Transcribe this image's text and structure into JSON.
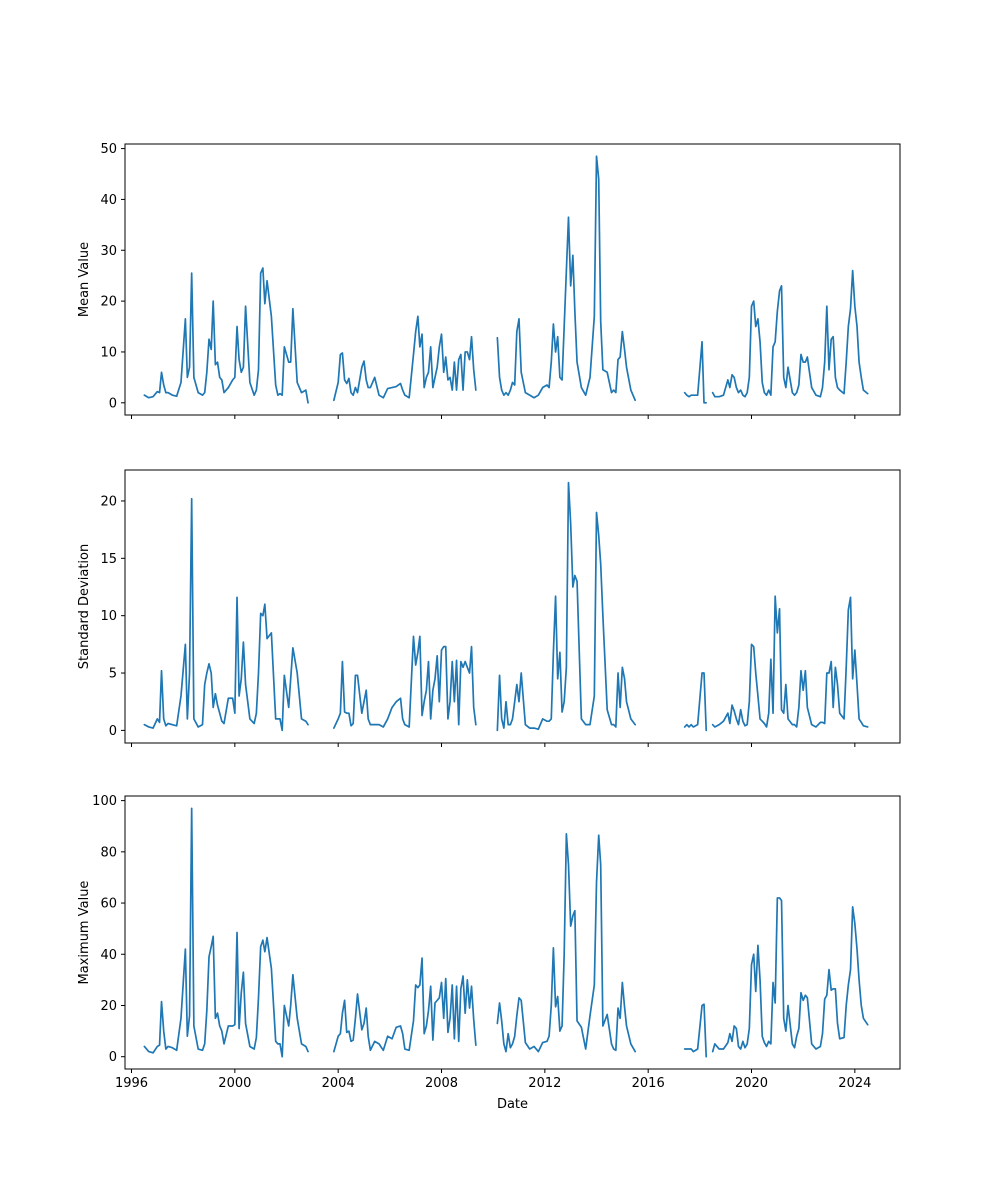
{
  "chart_data": {
    "type": "line",
    "xlabel": "Date",
    "x_ticks": [
      "1996",
      "2000",
      "2004",
      "2008",
      "2012",
      "2016",
      "2020",
      "2024"
    ],
    "xlim": [
      "1995-10-01",
      "2025-10-01"
    ],
    "sharex": true,
    "grid": false,
    "color": "#1f77b4",
    "segments": [
      {
        "x": [
          "1996-07",
          "1996-09",
          "1996-11",
          "1997-01",
          "1997-02",
          "1997-03",
          "1997-04",
          "1997-05",
          "1997-06",
          "1997-08",
          "1997-10",
          "1997-12",
          "1998-02",
          "1998-03",
          "1998-04",
          "1998-05",
          "1998-06",
          "1998-08",
          "1998-10",
          "1998-11",
          "1998-12",
          "1999-01",
          "1999-02",
          "1999-03",
          "1999-04",
          "1999-05",
          "1999-06",
          "1999-07",
          "1999-08",
          "1999-10",
          "1999-12",
          "2000-01",
          "2000-02",
          "2000-03",
          "2000-04",
          "2000-05",
          "2000-06",
          "2000-08",
          "2000-10",
          "2000-11",
          "2000-12",
          "2001-01",
          "2001-02",
          "2001-03",
          "2001-04",
          "2001-06",
          "2001-08",
          "2001-09",
          "2001-10",
          "2001-11",
          "2001-12",
          "2002-02",
          "2002-03",
          "2002-04",
          "2002-06",
          "2002-08",
          "2002-10",
          "2002-11"
        ],
        "mean": [
          1.5,
          1.0,
          1.2,
          2.2,
          2.0,
          6.0,
          3.5,
          2.0,
          2.0,
          1.5,
          1.3,
          4.0,
          16.5,
          5.0,
          7.0,
          25.5,
          5.0,
          2.0,
          1.5,
          2.0,
          6.0,
          12.5,
          10.5,
          20.0,
          7.5,
          8.0,
          5.0,
          4.5,
          2.0,
          3.0,
          4.5,
          5.0,
          15.0,
          8.5,
          6.0,
          7.0,
          19.0,
          4.0,
          1.5,
          2.5,
          6.5,
          25.5,
          26.5,
          19.5,
          24.0,
          17.0,
          3.5,
          1.5,
          1.8,
          1.5,
          11.0,
          8.0,
          8.0,
          18.5,
          4.0,
          2.0,
          2.5,
          0.0
        ],
        "std": [
          0.5,
          0.3,
          0.2,
          1.0,
          0.7,
          5.2,
          1.0,
          0.4,
          0.6,
          0.5,
          0.4,
          3.0,
          7.5,
          1.0,
          5.0,
          20.2,
          1.0,
          0.3,
          0.5,
          4.0,
          5.0,
          5.8,
          5.0,
          2.0,
          3.2,
          2.2,
          1.5,
          0.8,
          0.6,
          2.8,
          2.8,
          1.5,
          11.6,
          3.0,
          4.5,
          7.7,
          4.0,
          1.0,
          0.6,
          1.5,
          5.0,
          10.2,
          10.0,
          11.0,
          8.0,
          8.5,
          1.0,
          1.0,
          1.0,
          0.0,
          4.8,
          2.0,
          4.5,
          7.2,
          5.0,
          1.0,
          0.8,
          0.5
        ],
        "max": [
          4.0,
          2.0,
          1.5,
          4.0,
          4.5,
          21.5,
          10.0,
          3.0,
          4.0,
          3.5,
          2.5,
          15.0,
          42.0,
          8.0,
          16.0,
          97.0,
          12.0,
          3.0,
          2.5,
          5.0,
          18.0,
          39.0,
          43.0,
          47.0,
          15.0,
          17.0,
          12.0,
          10.0,
          5.0,
          12.0,
          12.0,
          12.5,
          48.5,
          11.0,
          25.0,
          33.0,
          13.0,
          4.0,
          3.0,
          7.5,
          23.0,
          43.0,
          45.5,
          41.0,
          46.5,
          34.5,
          6.0,
          5.0,
          5.0,
          0.0,
          20.0,
          12.0,
          20.0,
          32.0,
          15.0,
          5.0,
          4.0,
          2.0
        ]
      },
      {
        "x": [
          "2003-11",
          "2004-01",
          "2004-02",
          "2004-03",
          "2004-04",
          "2004-05",
          "2004-06",
          "2004-07",
          "2004-08",
          "2004-09",
          "2004-10",
          "2004-12",
          "2005-01",
          "2005-02",
          "2005-03",
          "2005-04",
          "2005-06",
          "2005-08",
          "2005-10",
          "2005-12",
          "2006-02",
          "2006-04",
          "2006-06",
          "2006-07",
          "2006-08",
          "2006-10",
          "2006-12",
          "2007-01",
          "2007-02",
          "2007-03",
          "2007-04",
          "2007-05",
          "2007-06",
          "2007-07",
          "2007-08",
          "2007-09",
          "2007-10",
          "2007-11",
          "2007-12",
          "2008-01",
          "2008-02",
          "2008-03",
          "2008-04",
          "2008-05",
          "2008-06",
          "2008-07",
          "2008-08",
          "2008-09",
          "2008-10",
          "2008-11",
          "2008-12",
          "2009-01",
          "2009-02",
          "2009-03",
          "2009-04",
          "2009-05"
        ],
        "mean": [
          0.5,
          4.0,
          9.5,
          9.8,
          4.5,
          3.8,
          4.8,
          2.0,
          1.5,
          3.0,
          2.0,
          7.0,
          8.2,
          4.5,
          3.0,
          3.0,
          5.0,
          1.5,
          1.0,
          2.8,
          3.0,
          3.2,
          3.8,
          2.5,
          1.5,
          1.0,
          9.5,
          14.0,
          17.0,
          11.0,
          13.5,
          3.0,
          5.0,
          6.0,
          11.0,
          3.0,
          5.0,
          7.0,
          11.0,
          13.5,
          6.0,
          9.0,
          4.5,
          5.0,
          2.5,
          8.0,
          2.5,
          8.5,
          9.5,
          2.5,
          10.0,
          10.0,
          8.5,
          13.0,
          6.5,
          2.5
        ],
        "std": [
          0.2,
          1.0,
          1.5,
          6.0,
          1.6,
          1.5,
          1.5,
          0.4,
          0.6,
          4.8,
          4.8,
          1.5,
          2.5,
          3.5,
          1.0,
          0.5,
          0.5,
          0.5,
          0.3,
          1.0,
          2.0,
          2.5,
          2.8,
          1.0,
          0.5,
          0.3,
          8.2,
          5.7,
          6.8,
          8.2,
          1.3,
          2.5,
          3.5,
          6.0,
          1.0,
          3.5,
          4.5,
          6.5,
          2.5,
          7.0,
          7.3,
          7.3,
          1.0,
          2.5,
          6.0,
          2.5,
          6.1,
          0.5,
          6.0,
          5.5,
          6.0,
          5.5,
          5.0,
          7.3,
          2.0,
          0.5
        ],
        "max": [
          2.0,
          8.0,
          9.0,
          17.0,
          22.0,
          9.5,
          10.0,
          6.0,
          6.5,
          15.0,
          24.5,
          10.5,
          13.0,
          19.0,
          8.0,
          2.5,
          6.0,
          5.0,
          2.5,
          8.0,
          7.0,
          11.5,
          12.0,
          9.0,
          3.0,
          2.5,
          14.0,
          28.0,
          27.0,
          28.0,
          38.5,
          9.0,
          12.0,
          18.0,
          27.5,
          6.5,
          21.0,
          22.0,
          23.0,
          29.0,
          15.0,
          30.5,
          9.5,
          15.0,
          28.0,
          7.0,
          27.5,
          6.0,
          26.5,
          31.5,
          17.0,
          30.0,
          19.0,
          27.5,
          14.5,
          4.5
        ]
      },
      {
        "x": [
          "2010-03",
          "2010-04",
          "2010-05",
          "2010-06",
          "2010-07",
          "2010-08",
          "2010-09",
          "2010-10",
          "2010-11",
          "2010-12",
          "2011-01",
          "2011-02",
          "2011-04",
          "2011-06",
          "2011-08",
          "2011-10",
          "2011-12",
          "2012-02",
          "2012-03",
          "2012-04",
          "2012-05",
          "2012-06",
          "2012-07",
          "2012-08",
          "2012-09",
          "2012-10",
          "2012-11",
          "2012-12",
          "2013-01",
          "2013-02",
          "2013-03",
          "2013-04",
          "2013-06",
          "2013-08",
          "2013-10",
          "2013-12",
          "2014-01",
          "2014-02",
          "2014-03",
          "2014-04",
          "2014-06",
          "2014-08",
          "2014-09",
          "2014-10",
          "2014-11",
          "2014-12",
          "2015-01",
          "2015-02",
          "2015-03",
          "2015-05",
          "2015-07"
        ],
        "mean": [
          12.8,
          5.0,
          2.5,
          1.5,
          2.0,
          1.5,
          2.5,
          4.0,
          3.5,
          14.0,
          16.5,
          6.0,
          2.0,
          1.5,
          1.0,
          1.5,
          3.0,
          3.5,
          3.0,
          8.0,
          15.5,
          10.0,
          13.0,
          5.0,
          4.5,
          15.0,
          26.0,
          36.5,
          23.0,
          29.0,
          18.0,
          8.0,
          3.0,
          1.5,
          5.0,
          17.0,
          48.5,
          44.0,
          16.0,
          6.5,
          6.0,
          2.0,
          2.5,
          2.0,
          8.5,
          9.0,
          14.0,
          10.5,
          7.0,
          2.5,
          0.5
        ],
        "std": [
          0.0,
          4.8,
          1.0,
          0.2,
          2.5,
          0.5,
          0.5,
          1.0,
          2.5,
          4.0,
          2.5,
          5.0,
          0.5,
          0.2,
          0.2,
          0.1,
          1.0,
          0.8,
          0.8,
          1.0,
          6.8,
          11.7,
          4.5,
          6.8,
          1.6,
          2.5,
          5.5,
          21.6,
          18.0,
          12.5,
          13.5,
          13.0,
          1.0,
          0.5,
          0.5,
          3.0,
          19.0,
          17.0,
          14.5,
          10.0,
          1.8,
          0.5,
          0.5,
          0.3,
          5.0,
          2.0,
          5.5,
          4.5,
          2.5,
          1.0,
          0.5
        ],
        "max": [
          13.0,
          21.0,
          14.0,
          5.0,
          2.0,
          9.0,
          3.5,
          5.0,
          8.0,
          16.0,
          23.0,
          22.0,
          5.5,
          3.0,
          4.0,
          2.0,
          5.5,
          6.0,
          8.0,
          20.0,
          42.5,
          19.5,
          23.5,
          10.0,
          12.0,
          40.0,
          87.0,
          75.0,
          51.0,
          55.0,
          57.0,
          14.0,
          11.5,
          3.0,
          16.0,
          28.0,
          68.0,
          86.5,
          75.0,
          12.0,
          16.5,
          5.0,
          3.0,
          2.5,
          19.0,
          15.0,
          29.0,
          19.5,
          12.0,
          5.0,
          2.0
        ]
      },
      {
        "x": [
          "2017-06",
          "2017-07",
          "2017-08",
          "2017-09",
          "2017-10",
          "2017-12",
          "2018-02",
          "2018-03",
          "2018-04"
        ],
        "mean": [
          2.0,
          1.5,
          1.2,
          1.5,
          1.5,
          1.5,
          12.0,
          0.0,
          0.0
        ],
        "std": [
          0.3,
          0.5,
          0.3,
          0.5,
          0.3,
          0.5,
          5.0,
          5.0,
          0.0
        ],
        "max": [
          3.0,
          3.0,
          3.0,
          3.0,
          2.0,
          3.0,
          20.0,
          20.5,
          0.0
        ]
      },
      {
        "x": [
          "2018-07",
          "2018-08",
          "2018-10",
          "2018-12",
          "2019-02",
          "2019-03",
          "2019-04",
          "2019-05",
          "2019-06",
          "2019-07",
          "2019-08",
          "2019-09",
          "2019-10",
          "2019-11",
          "2019-12",
          "2020-01",
          "2020-02",
          "2020-03",
          "2020-04",
          "2020-05",
          "2020-06",
          "2020-07",
          "2020-08",
          "2020-09",
          "2020-10",
          "2020-11",
          "2020-12",
          "2021-01",
          "2021-02",
          "2021-03",
          "2021-04",
          "2021-05",
          "2021-06",
          "2021-08",
          "2021-09",
          "2021-10",
          "2021-11",
          "2021-12",
          "2022-01",
          "2022-02",
          "2022-03",
          "2022-05",
          "2022-07",
          "2022-09",
          "2022-10",
          "2022-11",
          "2022-12",
          "2023-01",
          "2023-02",
          "2023-03",
          "2023-04",
          "2023-05",
          "2023-06",
          "2023-08",
          "2023-09",
          "2023-10",
          "2023-11",
          "2023-12",
          "2024-01",
          "2024-02",
          "2024-03",
          "2024-04",
          "2024-05",
          "2024-07"
        ],
        "mean": [
          2.0,
          1.2,
          1.2,
          1.5,
          4.5,
          3.0,
          5.5,
          5.0,
          3.0,
          2.0,
          2.5,
          1.5,
          1.2,
          2.0,
          5.0,
          19.0,
          20.0,
          15.0,
          16.5,
          12.0,
          4.0,
          2.0,
          1.5,
          2.5,
          1.5,
          11.0,
          12.0,
          18.0,
          22.0,
          23.0,
          5.0,
          3.0,
          7.0,
          2.0,
          1.5,
          2.0,
          3.5,
          9.5,
          8.0,
          8.0,
          9.0,
          3.0,
          1.5,
          1.2,
          3.0,
          8.0,
          19.0,
          6.5,
          12.5,
          13.0,
          5.0,
          3.0,
          2.5,
          1.8,
          8.0,
          15.0,
          18.5,
          26.0,
          19.0,
          15.0,
          8.0,
          5.0,
          2.5,
          1.8
        ],
        "std": [
          0.5,
          0.3,
          0.5,
          0.8,
          1.5,
          0.6,
          2.2,
          1.7,
          1.0,
          0.5,
          1.8,
          0.8,
          0.4,
          0.5,
          2.5,
          7.5,
          7.3,
          5.0,
          3.0,
          1.0,
          0.8,
          0.6,
          0.3,
          1.5,
          6.2,
          1.5,
          11.7,
          8.5,
          10.6,
          1.8,
          1.5,
          4.0,
          1.0,
          0.5,
          0.5,
          0.3,
          2.0,
          5.2,
          3.5,
          5.2,
          2.0,
          0.5,
          0.3,
          0.7,
          0.7,
          0.6,
          5.0,
          5.0,
          6.0,
          2.0,
          5.5,
          4.0,
          1.5,
          1.0,
          5.5,
          10.5,
          11.6,
          4.5,
          7.0,
          4.0,
          1.0,
          0.7,
          0.4,
          0.3
        ],
        "max": [
          2.0,
          5.0,
          3.0,
          3.0,
          5.5,
          9.0,
          6.0,
          12.0,
          11.0,
          4.0,
          3.0,
          6.0,
          3.5,
          5.0,
          11.0,
          36.0,
          40.0,
          25.5,
          43.5,
          30.0,
          8.0,
          5.5,
          4.0,
          6.0,
          5.0,
          29.0,
          21.0,
          62.0,
          62.0,
          61.0,
          15.0,
          10.0,
          20.0,
          5.0,
          3.5,
          8.0,
          11.0,
          25.0,
          22.0,
          24.0,
          23.0,
          5.0,
          3.0,
          4.0,
          9.0,
          22.5,
          24.0,
          34.0,
          26.0,
          26.5,
          26.5,
          13.0,
          7.0,
          7.5,
          20.0,
          28.0,
          34.0,
          58.5,
          52.0,
          42.0,
          30.0,
          20.0,
          15.0,
          12.5
        ]
      }
    ],
    "panels": [
      {
        "key": "mean",
        "ylabel": "Mean Value",
        "ylim": [
          -2.4,
          50.9
        ],
        "yticks": [
          0,
          10,
          20,
          30,
          40,
          50
        ],
        "show_x_ticklabels": false
      },
      {
        "key": "std",
        "ylabel": "Standard Deviation",
        "ylim": [
          -1.1,
          22.7
        ],
        "yticks": [
          0,
          5,
          10,
          15,
          20
        ],
        "show_x_ticklabels": false
      },
      {
        "key": "max",
        "ylabel": "Maximum Value",
        "ylim": [
          -4.8,
          101.8
        ],
        "yticks": [
          0,
          20,
          40,
          60,
          80,
          100
        ],
        "show_x_ticklabels": true
      }
    ]
  }
}
